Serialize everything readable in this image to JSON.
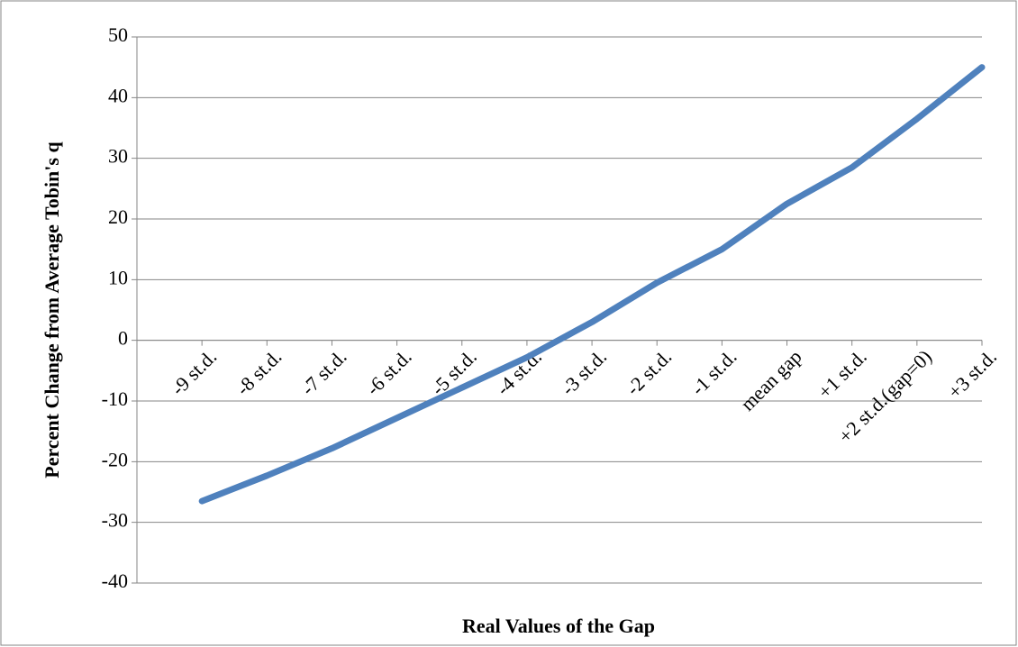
{
  "chart_data": {
    "type": "line",
    "x_label": "Real Values of the Gap",
    "y_label": "Percent Change  from Average Tobin's q",
    "categories": [
      "-9 st.d.",
      "-8 st.d.",
      "-7 st.d.",
      "-6 st.d.",
      "-5 st.d.",
      "-4 st.d.",
      "-3 st.d.",
      "-2 st.d.",
      "-1 st.d.",
      "mean gap",
      "+1 st.d.",
      "+2 st.d.(gap=0)",
      "+3 st.d."
    ],
    "values": [
      -26.5,
      -22.3,
      -17.8,
      -12.8,
      -7.8,
      -2.8,
      3.0,
      9.5,
      15.0,
      22.5,
      28.5,
      36.5,
      45.0
    ],
    "color": "#4f81bd",
    "ylim": [
      -40,
      50
    ],
    "yticks": [
      -40,
      -30,
      -20,
      -10,
      0,
      10,
      20,
      30,
      40,
      50
    ],
    "grid": true
  }
}
